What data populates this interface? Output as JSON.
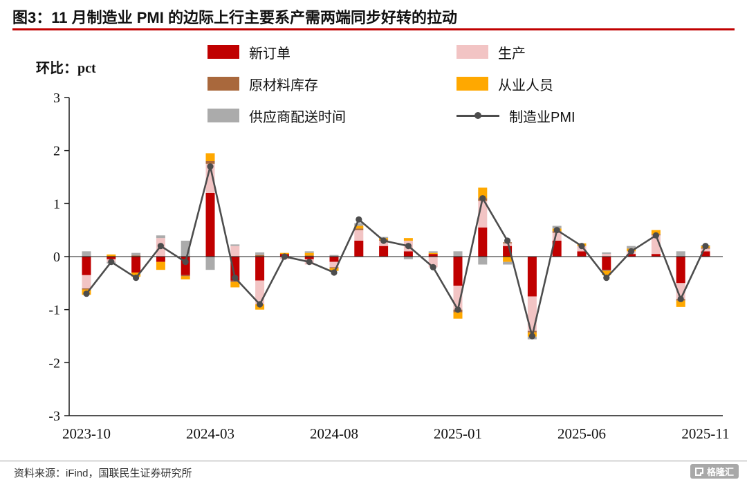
{
  "header": {
    "title": "图3：11 月制造业 PMI 的边际上行主要系产需两端同步好转的拉动"
  },
  "chart_data": {
    "type": "bar",
    "subtype": "stacked-bar-with-line",
    "title": "11 月制造业 PMI 的边际上行主要系产需两端同步好转的拉动",
    "ylabel": "环比：pct",
    "xlabel": "",
    "ylim": [
      -3,
      3
    ],
    "y_ticks": [
      3,
      2,
      1,
      0,
      -1,
      -2,
      -3
    ],
    "grid": false,
    "legend_position": "top",
    "categories": [
      "2023-10",
      "2023-11",
      "2023-12",
      "2024-01",
      "2024-02",
      "2024-03",
      "2024-04",
      "2024-05",
      "2024-06",
      "2024-07",
      "2024-08",
      "2024-09",
      "2024-10",
      "2024-11",
      "2024-12",
      "2025-01",
      "2025-02",
      "2025-03",
      "2025-04",
      "2025-05",
      "2025-06",
      "2025-07",
      "2025-08",
      "2025-09",
      "2025-10",
      "2025-11"
    ],
    "x_tick_labels": [
      "2023-10",
      "2024-03",
      "2024-08",
      "2025-01",
      "2025-06",
      "2025-11"
    ],
    "series": [
      {
        "name": "新订单",
        "kind": "bar",
        "color": "#C00000",
        "values": [
          -0.35,
          -0.05,
          -0.3,
          -0.1,
          -0.35,
          1.2,
          -0.45,
          -0.45,
          0.05,
          -0.05,
          -0.1,
          0.3,
          0.2,
          0.1,
          0.05,
          -0.55,
          0.55,
          0.2,
          -0.75,
          0.3,
          0.1,
          -0.25,
          0.05,
          0.05,
          -0.5,
          0.1
        ]
      },
      {
        "name": "生产",
        "kind": "bar",
        "color": "#F2C4C4",
        "values": [
          -0.25,
          -0.05,
          0.0,
          0.35,
          0.0,
          0.55,
          0.2,
          -0.45,
          -0.05,
          -0.1,
          -0.1,
          0.2,
          0.1,
          0.2,
          -0.2,
          -0.45,
          0.5,
          0.05,
          -0.65,
          0.15,
          0.1,
          0.05,
          0.05,
          0.35,
          -0.3,
          0.05
        ]
      },
      {
        "name": "原材料库存",
        "kind": "bar",
        "color": "#A9683C",
        "values": [
          -0.02,
          0.0,
          0.02,
          0.0,
          -0.02,
          0.05,
          -0.03,
          0.03,
          0.0,
          0.02,
          -0.02,
          0.03,
          0.02,
          0.0,
          0.0,
          -0.05,
          0.05,
          0.02,
          -0.03,
          0.03,
          0.0,
          -0.02,
          0.0,
          0.02,
          -0.03,
          0.02
        ]
      },
      {
        "name": "从业人员",
        "kind": "bar",
        "color": "#FFA800",
        "values": [
          -0.1,
          0.04,
          -0.08,
          -0.15,
          -0.06,
          0.15,
          -0.1,
          -0.1,
          0.02,
          0.05,
          -0.05,
          0.05,
          0.03,
          0.05,
          0.02,
          -0.12,
          0.2,
          -0.1,
          -0.08,
          0.05,
          0.05,
          -0.08,
          0.05,
          0.08,
          -0.12,
          0.03
        ]
      },
      {
        "name": "供应商配送时间",
        "kind": "bar",
        "color": "#ABABAB",
        "values": [
          0.1,
          -0.03,
          0.05,
          0.05,
          0.3,
          -0.25,
          0.03,
          0.05,
          0.0,
          0.03,
          0.03,
          0.05,
          0.02,
          -0.05,
          0.03,
          0.1,
          -0.15,
          -0.05,
          -0.05,
          0.05,
          0.0,
          0.03,
          0.05,
          0.0,
          0.1,
          0.02
        ]
      },
      {
        "name": "制造业PMI",
        "kind": "line",
        "color": "#4D4D4D",
        "values": [
          -0.7,
          -0.1,
          -0.4,
          0.2,
          -0.1,
          1.7,
          -0.4,
          -0.9,
          0.0,
          -0.1,
          -0.3,
          0.7,
          0.3,
          0.2,
          -0.2,
          -1.0,
          1.1,
          0.3,
          -1.5,
          0.5,
          0.2,
          -0.4,
          0.1,
          0.4,
          -0.8,
          0.2
        ]
      }
    ]
  },
  "footer": {
    "source": "资料来源：iFind，国联民生证券研究所",
    "logo_text": "格隆汇"
  },
  "accent_colors": {
    "title_rule": "#C00000",
    "line_color": "#4D4D4D"
  }
}
